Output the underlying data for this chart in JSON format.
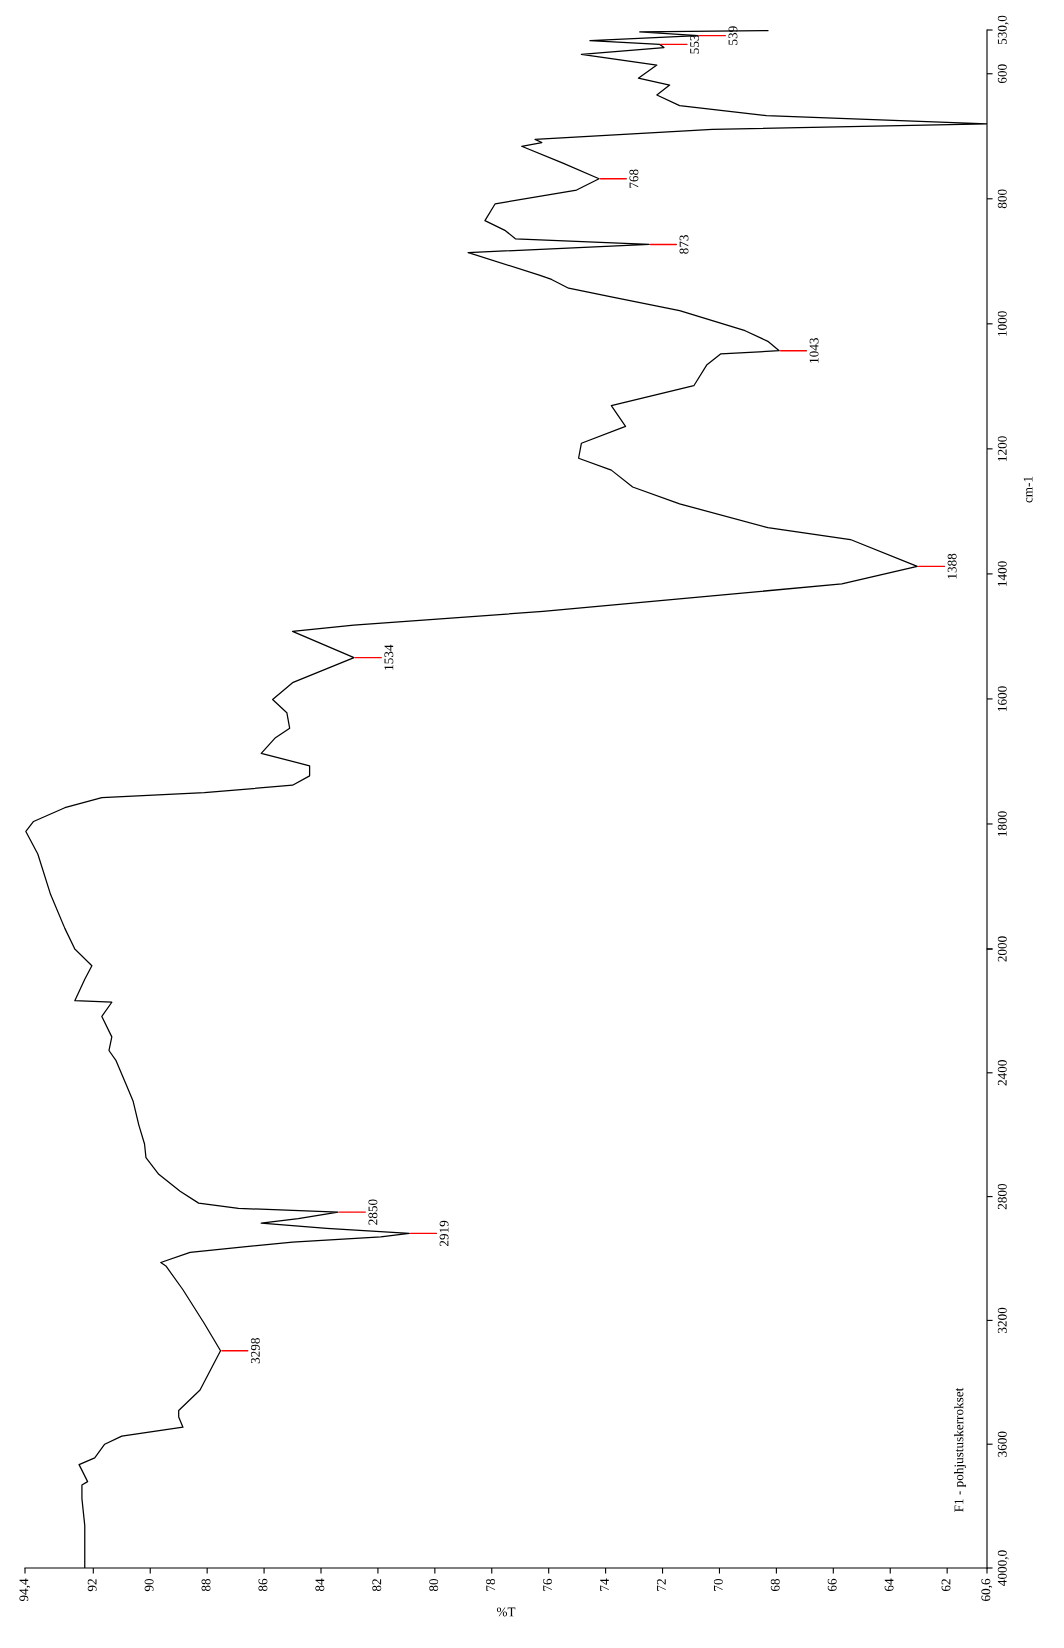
{
  "chart_data": [
    {
      "type": "line",
      "title": "F1 - pohjustuskerrokset",
      "xlabel": "%T",
      "xlim": [
        94.4,
        60.6
      ],
      "ylim": [
        4000,
        2000
      ],
      "xticks": [
        {
          "value": 94.4,
          "label": "94,4"
        },
        92,
        90,
        88,
        86,
        84,
        82,
        80,
        78,
        76,
        74,
        72,
        70,
        68,
        66,
        64,
        62,
        {
          "value": 60.6,
          "label": "60,6"
        }
      ],
      "yticks": [
        {
          "value": 4000,
          "label": "4000,0"
        },
        3600,
        3200,
        2800,
        2400,
        {
          "value": 2000,
          "label": null
        }
      ],
      "series": [
        {
          "color": "#000000",
          "x": [
            92.3,
            92.3,
            92.4,
            92.4,
            92.2,
            92.5,
            91.95,
            91.6,
            91.0,
            88.85,
            89.0,
            89.0,
            88.25,
            87.53,
            88.1,
            88.85,
            89.45,
            89.63,
            88.6,
            85.0,
            81.9,
            80.9,
            83.8,
            86.1,
            84.8,
            83.4,
            86.9,
            88.3,
            88.95,
            89.7,
            90.15,
            90.2,
            90.4,
            90.6,
            90.85,
            91.2,
            91.45,
            91.35,
            91.7,
            91.35,
            92.65,
            92.3,
            92.05,
            92.65
          ],
          "values": [
            4000,
            3863,
            3776,
            3732,
            3721,
            3666,
            3644,
            3600,
            3574,
            3545,
            3512,
            3491,
            3425,
            3298,
            3210,
            3101,
            3024,
            3013,
            2980,
            2947,
            2930,
            2919,
            2903,
            2886,
            2871,
            2850,
            2838,
            2821,
            2783,
            2728,
            2674,
            2630,
            2569,
            2492,
            2437,
            2361,
            2328,
            2284,
            2218,
            2172,
            2167,
            2098,
            2054,
            2000
          ]
        }
      ],
      "annotations": [
        {
          "text": "3298",
          "x": 87.53,
          "y": 3298
        },
        {
          "text": "2919",
          "x": 80.9,
          "y": 2919
        },
        {
          "text": "2850",
          "x": 83.4,
          "y": 2850
        }
      ]
    },
    {
      "type": "line",
      "ylabel": "cm-1",
      "tick_labels": "y",
      "xlim": [
        94.4,
        60.6
      ],
      "ylim": [
        2000,
        530
      ],
      "yticks": [
        2000,
        1800,
        1600,
        1400,
        1200,
        1000,
        800,
        600,
        {
          "value": 530,
          "label": "530,0"
        }
      ],
      "series": [
        {
          "color": "#000000",
          "x": [
            92.65,
            93.0,
            93.5,
            93.95,
            94.37,
            94.1,
            93.0,
            91.7,
            88.1,
            85.0,
            84.4,
            84.4,
            86.1,
            85.6,
            85.1,
            85.2,
            85.7,
            85.0,
            82.84,
            85.0,
            82.85,
            76.2,
            65.7,
            63.05,
            65.4,
            68.3,
            71.4,
            73.05,
            73.8,
            74.95,
            74.85,
            73.3,
            73.8,
            70.9,
            70.45,
            69.95,
            67.9,
            68.3,
            69.1,
            71.4,
            73.8,
            75.3,
            75.9,
            76.33,
            78.83,
            72.47,
            77.17,
            77.52,
            78.24,
            77.88,
            75.02,
            74.23,
            75.5,
            76.95,
            76.24,
            76.48,
            70.25,
            60.6,
            68.35,
            71.4,
            72.2,
            71.75,
            72.85,
            72.2,
            74.85,
            71.95,
            72.1,
            74.55,
            70.75,
            72.8,
            68.3
          ],
          "values": [
            2000,
            1967,
            1913,
            1848,
            1812,
            1796,
            1774,
            1758,
            1750,
            1738,
            1723,
            1707,
            1687,
            1662,
            1647,
            1622,
            1601,
            1574,
            1534,
            1492,
            1482,
            1460,
            1416,
            1388,
            1345,
            1326,
            1288,
            1261,
            1234,
            1215,
            1191,
            1164,
            1131,
            1099,
            1066,
            1048,
            1043,
            1028,
            1011,
            979,
            957,
            943,
            929,
            922,
            886,
            873,
            864,
            851,
            835,
            808,
            786,
            768,
            743,
            716,
            710,
            705,
            689,
            680,
            667,
            651,
            634,
            618,
            607,
            586,
            569,
            558,
            553,
            547,
            539,
            533,
            531
          ]
        }
      ],
      "annotations": [
        {
          "text": "1534",
          "x": 82.84,
          "y": 1534
        },
        {
          "text": "1388",
          "x": 63.05,
          "y": 1388
        },
        {
          "text": "1043",
          "x": 67.9,
          "y": 1043
        },
        {
          "text": "873",
          "x": 72.47,
          "y": 873
        },
        {
          "text": "768",
          "x": 74.23,
          "y": 768
        },
        {
          "text": "553",
          "x": 72.1,
          "y": 553
        },
        {
          "text": "539",
          "x": 70.75,
          "y": 539
        }
      ]
    }
  ]
}
